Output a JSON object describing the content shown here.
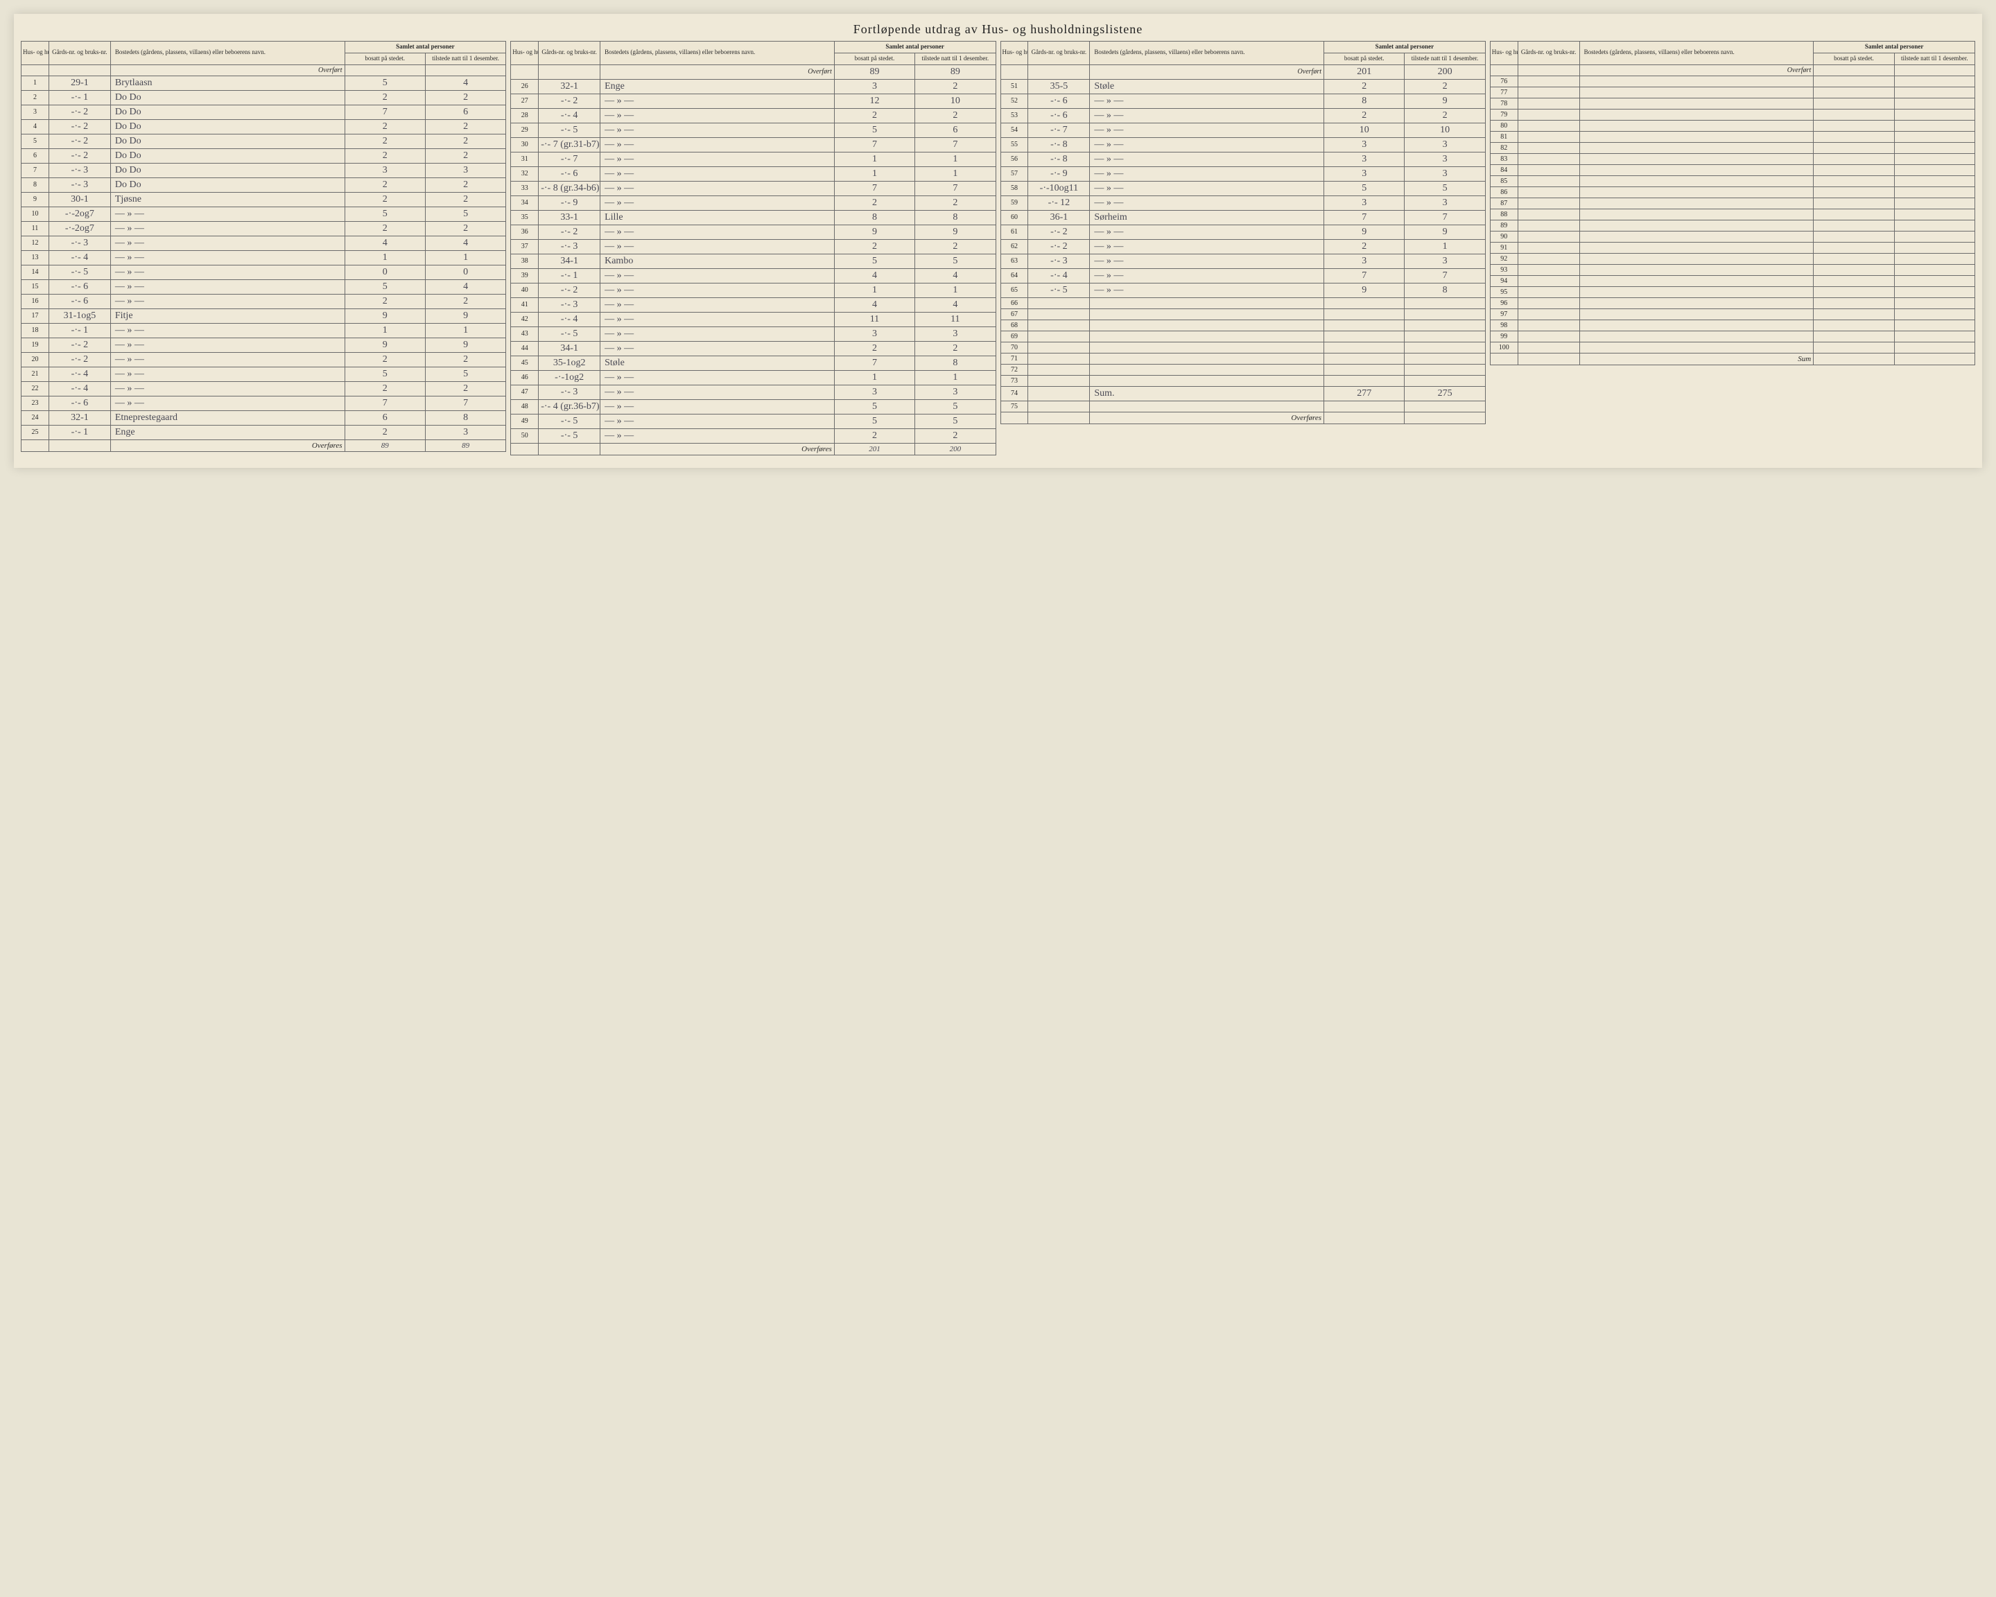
{
  "title": "Fortløpende utdrag    av Hus- og husholdningslistene",
  "headers": {
    "idx": "Hus- og hushold-nings-liste nr.",
    "gnr": "Gårds-nr. og bruks-nr.",
    "name": "Bostedets (gårdens, plassens, villaens) eller beboerens navn.",
    "antall_group": "Samlet antal personer",
    "bosatt": "bosatt på stedet.",
    "tilstede": "tilstede natt til 1 desember."
  },
  "overfort_label": "Overført",
  "overfores_label": "Overføres",
  "sum_label": "Sum",
  "panels": [
    {
      "overfort": {
        "bosatt": "",
        "tilstede": ""
      },
      "rows": [
        {
          "idx": "1",
          "gnr": "29-1",
          "name": "Brytlaasn",
          "bosatt": "5",
          "tilstede": "4"
        },
        {
          "idx": "2",
          "gnr": "-·- 1",
          "name": "Do      Do",
          "bosatt": "2",
          "tilstede": "2"
        },
        {
          "idx": "3",
          "gnr": "-·- 2",
          "name": "Do      Do",
          "bosatt": "7",
          "tilstede": "6"
        },
        {
          "idx": "4",
          "gnr": "-·- 2",
          "name": "Do      Do",
          "bosatt": "2",
          "tilstede": "2"
        },
        {
          "idx": "5",
          "gnr": "-·- 2",
          "name": "Do      Do",
          "bosatt": "2",
          "tilstede": "2"
        },
        {
          "idx": "6",
          "gnr": "-·- 2",
          "name": "Do      Do",
          "bosatt": "2",
          "tilstede": "2"
        },
        {
          "idx": "7",
          "gnr": "-·- 3",
          "name": "Do      Do",
          "bosatt": "3",
          "tilstede": "3"
        },
        {
          "idx": "8",
          "gnr": "-·- 3",
          "name": "Do      Do",
          "bosatt": "2",
          "tilstede": "2"
        },
        {
          "idx": "9",
          "gnr": "30-1",
          "name": "Tjøsne",
          "bosatt": "2",
          "tilstede": "2"
        },
        {
          "idx": "10",
          "gnr": "-·-2og7",
          "name": "— » —",
          "bosatt": "5",
          "tilstede": "5"
        },
        {
          "idx": "11",
          "gnr": "-·-2og7",
          "name": "— » —",
          "bosatt": "2",
          "tilstede": "2"
        },
        {
          "idx": "12",
          "gnr": "-·- 3",
          "name": "— » —",
          "bosatt": "4",
          "tilstede": "4"
        },
        {
          "idx": "13",
          "gnr": "-·- 4",
          "name": "— » —",
          "bosatt": "1",
          "tilstede": "1"
        },
        {
          "idx": "14",
          "gnr": "-·- 5",
          "name": "— » —",
          "bosatt": "0",
          "tilstede": "0"
        },
        {
          "idx": "15",
          "gnr": "-·- 6",
          "name": "— » —",
          "bosatt": "5",
          "tilstede": "4"
        },
        {
          "idx": "16",
          "gnr": "-·- 6",
          "name": "— » —",
          "bosatt": "2",
          "tilstede": "2"
        },
        {
          "idx": "17",
          "gnr": "31-1og5",
          "name": "Fitje",
          "bosatt": "9",
          "tilstede": "9"
        },
        {
          "idx": "18",
          "gnr": "-·- 1",
          "name": "— » —",
          "bosatt": "1",
          "tilstede": "1"
        },
        {
          "idx": "19",
          "gnr": "-·- 2",
          "name": "— » —",
          "bosatt": "9",
          "tilstede": "9"
        },
        {
          "idx": "20",
          "gnr": "-·- 2",
          "name": "— » —",
          "bosatt": "2",
          "tilstede": "2"
        },
        {
          "idx": "21",
          "gnr": "-·- 4",
          "name": "— » —",
          "bosatt": "5",
          "tilstede": "5"
        },
        {
          "idx": "22",
          "gnr": "-·- 4",
          "name": "— » —",
          "bosatt": "2",
          "tilstede": "2"
        },
        {
          "idx": "23",
          "gnr": "-·- 6",
          "name": "— » —",
          "bosatt": "7",
          "tilstede": "7"
        },
        {
          "idx": "24",
          "gnr": "32-1",
          "name": "Etneprestegaard",
          "bosatt": "6",
          "tilstede": "8"
        },
        {
          "idx": "25",
          "gnr": "-·- 1",
          "name": "Enge",
          "bosatt": "2",
          "tilstede": "3"
        }
      ],
      "footer": {
        "label": "Overføres",
        "bosatt": "89",
        "tilstede": "89"
      }
    },
    {
      "overfort": {
        "bosatt": "89",
        "tilstede": "89"
      },
      "rows": [
        {
          "idx": "26",
          "gnr": "32-1",
          "name": "Enge",
          "bosatt": "3",
          "tilstede": "2"
        },
        {
          "idx": "27",
          "gnr": "-·- 2",
          "name": "— » —",
          "bosatt": "12",
          "tilstede": "10"
        },
        {
          "idx": "28",
          "gnr": "-·- 4",
          "name": "— » —",
          "bosatt": "2",
          "tilstede": "2"
        },
        {
          "idx": "29",
          "gnr": "-·- 5",
          "name": "— » —",
          "bosatt": "5",
          "tilstede": "6"
        },
        {
          "idx": "30",
          "gnr": "-·- 7 (gr.31-b7)",
          "name": "— » —",
          "bosatt": "7",
          "tilstede": "7"
        },
        {
          "idx": "31",
          "gnr": "-·- 7",
          "name": "— » —",
          "bosatt": "1",
          "tilstede": "1"
        },
        {
          "idx": "32",
          "gnr": "-·- 6",
          "name": "— » —",
          "bosatt": "1",
          "tilstede": "1"
        },
        {
          "idx": "33",
          "gnr": "-·- 8 (gr.34-b6)",
          "name": "— » —",
          "bosatt": "7",
          "tilstede": "7"
        },
        {
          "idx": "34",
          "gnr": "-·- 9",
          "name": "— » —",
          "bosatt": "2",
          "tilstede": "2"
        },
        {
          "idx": "35",
          "gnr": "33-1",
          "name": "Lille",
          "bosatt": "8",
          "tilstede": "8"
        },
        {
          "idx": "36",
          "gnr": "-·- 2",
          "name": "— » —",
          "bosatt": "9",
          "tilstede": "9"
        },
        {
          "idx": "37",
          "gnr": "-·- 3",
          "name": "— » —",
          "bosatt": "2",
          "tilstede": "2"
        },
        {
          "idx": "38",
          "gnr": "34-1",
          "name": "Kambo",
          "bosatt": "5",
          "tilstede": "5"
        },
        {
          "idx": "39",
          "gnr": "-·- 1",
          "name": "— » —",
          "bosatt": "4",
          "tilstede": "4"
        },
        {
          "idx": "40",
          "gnr": "-·- 2",
          "name": "— » —",
          "bosatt": "1",
          "tilstede": "1"
        },
        {
          "idx": "41",
          "gnr": "-·- 3",
          "name": "— » —",
          "bosatt": "4",
          "tilstede": "4"
        },
        {
          "idx": "42",
          "gnr": "-·- 4",
          "name": "— » —",
          "bosatt": "11",
          "tilstede": "11"
        },
        {
          "idx": "43",
          "gnr": "-·- 5",
          "name": "— » —",
          "bosatt": "3",
          "tilstede": "3"
        },
        {
          "idx": "44",
          "gnr": "34-1",
          "name": "— » —",
          "bosatt": "2",
          "tilstede": "2"
        },
        {
          "idx": "45",
          "gnr": "35-1og2",
          "name": "Støle",
          "bosatt": "7",
          "tilstede": "8"
        },
        {
          "idx": "46",
          "gnr": "-·-1og2",
          "name": "— » —",
          "bosatt": "1",
          "tilstede": "1"
        },
        {
          "idx": "47",
          "gnr": "-·- 3",
          "name": "— » —",
          "bosatt": "3",
          "tilstede": "3"
        },
        {
          "idx": "48",
          "gnr": "-·- 4 (gr.36-b7)",
          "name": "— » —",
          "bosatt": "5",
          "tilstede": "5"
        },
        {
          "idx": "49",
          "gnr": "-·- 5",
          "name": "— » —",
          "bosatt": "5",
          "tilstede": "5"
        },
        {
          "idx": "50",
          "gnr": "-·- 5",
          "name": "— » —",
          "bosatt": "2",
          "tilstede": "2"
        }
      ],
      "footer": {
        "label": "Overføres",
        "bosatt": "201",
        "tilstede": "200"
      }
    },
    {
      "overfort": {
        "bosatt": "201",
        "tilstede": "200"
      },
      "rows": [
        {
          "idx": "51",
          "gnr": "35-5",
          "name": "Støle",
          "bosatt": "2",
          "tilstede": "2"
        },
        {
          "idx": "52",
          "gnr": "-·- 6",
          "name": "— » —",
          "bosatt": "8",
          "tilstede": "9"
        },
        {
          "idx": "53",
          "gnr": "-·- 6",
          "name": "— » —",
          "bosatt": "2",
          "tilstede": "2"
        },
        {
          "idx": "54",
          "gnr": "-·- 7",
          "name": "— » —",
          "bosatt": "10",
          "tilstede": "10"
        },
        {
          "idx": "55",
          "gnr": "-·- 8",
          "name": "— » —",
          "bosatt": "3",
          "tilstede": "3"
        },
        {
          "idx": "56",
          "gnr": "-·- 8",
          "name": "— » —",
          "bosatt": "3",
          "tilstede": "3"
        },
        {
          "idx": "57",
          "gnr": "-·- 9",
          "name": "— » —",
          "bosatt": "3",
          "tilstede": "3"
        },
        {
          "idx": "58",
          "gnr": "-·-10og11",
          "name": "— » —",
          "bosatt": "5",
          "tilstede": "5"
        },
        {
          "idx": "59",
          "gnr": "-·- 12",
          "name": "— » —",
          "bosatt": "3",
          "tilstede": "3"
        },
        {
          "idx": "60",
          "gnr": "36-1",
          "name": "Sørheim",
          "bosatt": "7",
          "tilstede": "7"
        },
        {
          "idx": "61",
          "gnr": "-·- 2",
          "name": "— » —",
          "bosatt": "9",
          "tilstede": "9"
        },
        {
          "idx": "62",
          "gnr": "-·- 2",
          "name": "— » —",
          "bosatt": "2",
          "tilstede": "1"
        },
        {
          "idx": "63",
          "gnr": "-·- 3",
          "name": "— » —",
          "bosatt": "3",
          "tilstede": "3"
        },
        {
          "idx": "64",
          "gnr": "-·- 4",
          "name": "— » —",
          "bosatt": "7",
          "tilstede": "7"
        },
        {
          "idx": "65",
          "gnr": "-·- 5",
          "name": "— » —",
          "bosatt": "9",
          "tilstede": "8"
        },
        {
          "idx": "66",
          "gnr": "",
          "name": "",
          "bosatt": "",
          "tilstede": ""
        },
        {
          "idx": "67",
          "gnr": "",
          "name": "",
          "bosatt": "",
          "tilstede": ""
        },
        {
          "idx": "68",
          "gnr": "",
          "name": "",
          "bosatt": "",
          "tilstede": ""
        },
        {
          "idx": "69",
          "gnr": "",
          "name": "",
          "bosatt": "",
          "tilstede": ""
        },
        {
          "idx": "70",
          "gnr": "",
          "name": "",
          "bosatt": "",
          "tilstede": ""
        },
        {
          "idx": "71",
          "gnr": "",
          "name": "",
          "bosatt": "",
          "tilstede": ""
        },
        {
          "idx": "72",
          "gnr": "",
          "name": "",
          "bosatt": "",
          "tilstede": ""
        },
        {
          "idx": "73",
          "gnr": "",
          "name": "",
          "bosatt": "",
          "tilstede": ""
        },
        {
          "idx": "74",
          "gnr": "",
          "name": "Sum.",
          "bosatt": "277",
          "tilstede": "275"
        },
        {
          "idx": "75",
          "gnr": "",
          "name": "",
          "bosatt": "",
          "tilstede": ""
        }
      ],
      "footer": {
        "label": "Overføres",
        "bosatt": "",
        "tilstede": ""
      }
    },
    {
      "overfort": {
        "bosatt": "",
        "tilstede": ""
      },
      "rows": [
        {
          "idx": "76",
          "gnr": "",
          "name": "",
          "bosatt": "",
          "tilstede": ""
        },
        {
          "idx": "77",
          "gnr": "",
          "name": "",
          "bosatt": "",
          "tilstede": ""
        },
        {
          "idx": "78",
          "gnr": "",
          "name": "",
          "bosatt": "",
          "tilstede": ""
        },
        {
          "idx": "79",
          "gnr": "",
          "name": "",
          "bosatt": "",
          "tilstede": ""
        },
        {
          "idx": "80",
          "gnr": "",
          "name": "",
          "bosatt": "",
          "tilstede": ""
        },
        {
          "idx": "81",
          "gnr": "",
          "name": "",
          "bosatt": "",
          "tilstede": ""
        },
        {
          "idx": "82",
          "gnr": "",
          "name": "",
          "bosatt": "",
          "tilstede": ""
        },
        {
          "idx": "83",
          "gnr": "",
          "name": "",
          "bosatt": "",
          "tilstede": ""
        },
        {
          "idx": "84",
          "gnr": "",
          "name": "",
          "bosatt": "",
          "tilstede": ""
        },
        {
          "idx": "85",
          "gnr": "",
          "name": "",
          "bosatt": "",
          "tilstede": ""
        },
        {
          "idx": "86",
          "gnr": "",
          "name": "",
          "bosatt": "",
          "tilstede": ""
        },
        {
          "idx": "87",
          "gnr": "",
          "name": "",
          "bosatt": "",
          "tilstede": ""
        },
        {
          "idx": "88",
          "gnr": "",
          "name": "",
          "bosatt": "",
          "tilstede": ""
        },
        {
          "idx": "89",
          "gnr": "",
          "name": "",
          "bosatt": "",
          "tilstede": ""
        },
        {
          "idx": "90",
          "gnr": "",
          "name": "",
          "bosatt": "",
          "tilstede": ""
        },
        {
          "idx": "91",
          "gnr": "",
          "name": "",
          "bosatt": "",
          "tilstede": ""
        },
        {
          "idx": "92",
          "gnr": "",
          "name": "",
          "bosatt": "",
          "tilstede": ""
        },
        {
          "idx": "93",
          "gnr": "",
          "name": "",
          "bosatt": "",
          "tilstede": ""
        },
        {
          "idx": "94",
          "gnr": "",
          "name": "",
          "bosatt": "",
          "tilstede": ""
        },
        {
          "idx": "95",
          "gnr": "",
          "name": "",
          "bosatt": "",
          "tilstede": ""
        },
        {
          "idx": "96",
          "gnr": "",
          "name": "",
          "bosatt": "",
          "tilstede": ""
        },
        {
          "idx": "97",
          "gnr": "",
          "name": "",
          "bosatt": "",
          "tilstede": ""
        },
        {
          "idx": "98",
          "gnr": "",
          "name": "",
          "bosatt": "",
          "tilstede": ""
        },
        {
          "idx": "99",
          "gnr": "",
          "name": "",
          "bosatt": "",
          "tilstede": ""
        },
        {
          "idx": "100",
          "gnr": "",
          "name": "",
          "bosatt": "",
          "tilstede": ""
        }
      ],
      "footer": {
        "label": "Sum",
        "bosatt": "",
        "tilstede": ""
      }
    }
  ]
}
